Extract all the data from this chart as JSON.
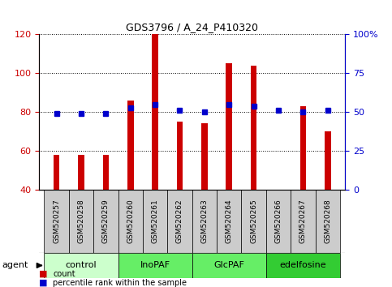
{
  "title": "GDS3796 / A_24_P410320",
  "samples": [
    "GSM520257",
    "GSM520258",
    "GSM520259",
    "GSM520260",
    "GSM520261",
    "GSM520262",
    "GSM520263",
    "GSM520264",
    "GSM520265",
    "GSM520266",
    "GSM520267",
    "GSM520268"
  ],
  "counts": [
    58,
    58,
    58,
    86,
    120,
    75,
    74,
    105,
    104,
    40,
    83,
    70
  ],
  "percentile_vals": [
    79,
    79,
    79,
    82,
    84,
    81,
    80,
    84,
    83,
    81,
    80,
    81
  ],
  "groups": [
    {
      "label": "control",
      "start": 0,
      "end": 3,
      "color": "#ccffcc"
    },
    {
      "label": "InoPAF",
      "start": 3,
      "end": 6,
      "color": "#66ee66"
    },
    {
      "label": "GlcPAF",
      "start": 6,
      "end": 9,
      "color": "#66ee66"
    },
    {
      "label": "edelfosine",
      "start": 9,
      "end": 12,
      "color": "#33cc33"
    }
  ],
  "ylim_left": [
    40,
    120
  ],
  "ylim_right": [
    0,
    100
  ],
  "bar_color": "#cc0000",
  "dot_color": "#0000cc",
  "left_yticks": [
    40,
    60,
    80,
    100,
    120
  ],
  "right_yticks": [
    0,
    25,
    50,
    75,
    100
  ],
  "right_tick_labels": [
    "0",
    "25",
    "50",
    "75",
    "100%"
  ],
  "sample_box_color": "#cccccc",
  "bar_width": 0.25
}
